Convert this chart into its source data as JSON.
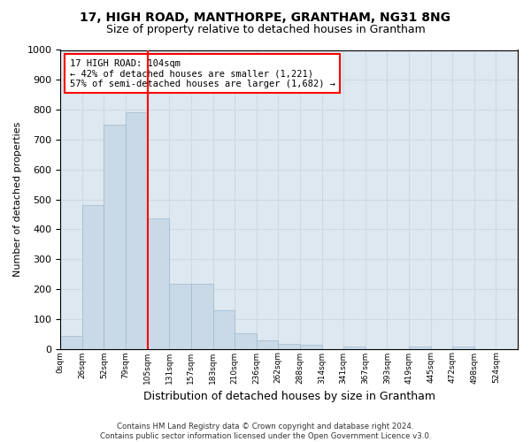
{
  "title1": "17, HIGH ROAD, MANTHORPE, GRANTHAM, NG31 8NG",
  "title2": "Size of property relative to detached houses in Grantham",
  "xlabel": "Distribution of detached houses by size in Grantham",
  "ylabel": "Number of detached properties",
  "footer1": "Contains HM Land Registry data © Crown copyright and database right 2024.",
  "footer2": "Contains public sector information licensed under the Open Government Licence v3.0.",
  "bin_labels": [
    "0sqm",
    "26sqm",
    "52sqm",
    "79sqm",
    "105sqm",
    "131sqm",
    "157sqm",
    "183sqm",
    "210sqm",
    "236sqm",
    "262sqm",
    "288sqm",
    "314sqm",
    "341sqm",
    "367sqm",
    "393sqm",
    "419sqm",
    "445sqm",
    "472sqm",
    "498sqm",
    "524sqm"
  ],
  "bar_values": [
    43,
    480,
    750,
    790,
    435,
    218,
    218,
    130,
    52,
    28,
    15,
    12,
    0,
    8,
    0,
    0,
    8,
    0,
    8,
    0,
    0
  ],
  "bar_color": "#c9d9e8",
  "bar_edge_color": "#a0b8cc",
  "grid_color": "#d0d8e0",
  "annotation_text": "17 HIGH ROAD: 104sqm\n← 42% of detached houses are smaller (1,221)\n57% of semi-detached houses are larger (1,682) →",
  "vline_x": 4,
  "ylim": [
    0,
    1000
  ],
  "yticks": [
    0,
    100,
    200,
    300,
    400,
    500,
    600,
    700,
    800,
    900,
    1000
  ],
  "bg_color": "#dde8f0"
}
